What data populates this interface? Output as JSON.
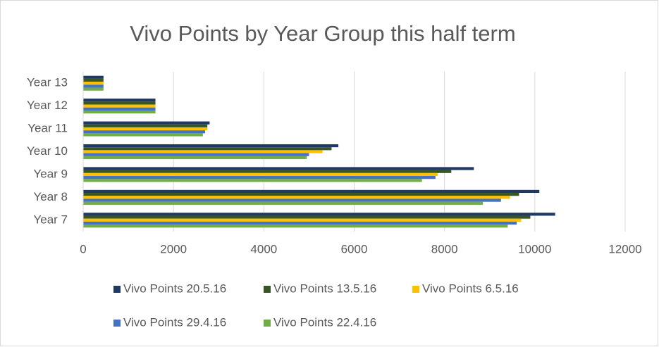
{
  "chart_data": {
    "type": "bar",
    "orientation": "horizontal",
    "title": "Vivo Points by Year Group this half term",
    "categories": [
      "Year 7",
      "Year 8",
      "Year 9",
      "Year 10",
      "Year 11",
      "Year 12",
      "Year 13"
    ],
    "series": [
      {
        "name": "Vivo Points 20.5.16",
        "color": "#203864",
        "values": [
          10450,
          10100,
          8650,
          5650,
          2800,
          1600,
          450
        ]
      },
      {
        "name": "Vivo Points 13.5.16",
        "color": "#375623",
        "values": [
          9900,
          9650,
          8150,
          5500,
          2750,
          1600,
          450
        ]
      },
      {
        "name": "Vivo Points 6.5.16",
        "color": "#ffc000",
        "values": [
          9700,
          9450,
          7850,
          5300,
          2750,
          1600,
          450
        ]
      },
      {
        "name": "Vivo Points 29.4.16",
        "color": "#4472c4",
        "values": [
          9600,
          9250,
          7800,
          5000,
          2700,
          1600,
          450
        ]
      },
      {
        "name": "Vivo Points 22.4.16",
        "color": "#70ad47",
        "values": [
          9400,
          8850,
          7500,
          4950,
          2650,
          1600,
          450
        ]
      }
    ],
    "xlim": [
      0,
      12000
    ],
    "xticks": [
      0,
      2000,
      4000,
      6000,
      8000,
      10000,
      12000
    ],
    "grid": true,
    "legend": "bottom"
  }
}
